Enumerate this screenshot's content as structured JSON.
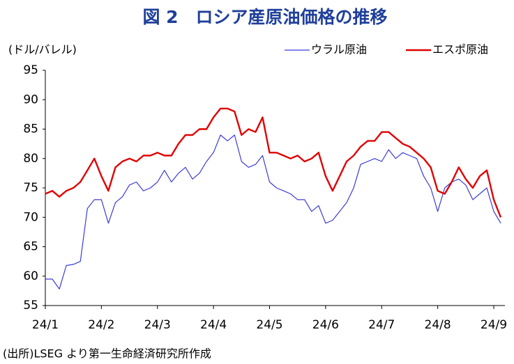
{
  "chart_data": {
    "type": "line",
    "title": "図 2　ロシア産原油価格の推移",
    "y_label": "(ドル/バレル)",
    "source": "(出所)LSEG より第一生命経済研究所作成",
    "categories": [
      "24/1",
      null,
      null,
      null,
      null,
      null,
      null,
      null,
      "24/2",
      null,
      null,
      null,
      null,
      null,
      null,
      null,
      "24/3",
      null,
      null,
      null,
      null,
      null,
      null,
      null,
      "24/4",
      null,
      null,
      null,
      null,
      null,
      null,
      null,
      "24/5",
      null,
      null,
      null,
      null,
      null,
      null,
      null,
      "24/6",
      null,
      null,
      null,
      null,
      null,
      null,
      null,
      "24/7",
      null,
      null,
      null,
      null,
      null,
      null,
      null,
      "24/8",
      null,
      null,
      null,
      null,
      null,
      null,
      null,
      "24/9",
      null
    ],
    "series": [
      {
        "name": "ウラル原油",
        "color": "#3b3bd6",
        "values": [
          59.5,
          59.5,
          57.8,
          61.8,
          62,
          62.5,
          71.5,
          73,
          73,
          69,
          72.5,
          73.5,
          75.5,
          76,
          74.5,
          75,
          76,
          78,
          76,
          77.5,
          78.5,
          76.5,
          77.5,
          79.5,
          81,
          84,
          83,
          84,
          79.5,
          78.5,
          79,
          80.5,
          76,
          75,
          74.5,
          74,
          73,
          73,
          71,
          72,
          69,
          69.5,
          71,
          72.5,
          75,
          79,
          79.5,
          80,
          79.5,
          81.5,
          80,
          81,
          80.5,
          80,
          77,
          75,
          71,
          75,
          76,
          76.5,
          75.5,
          73,
          74,
          75,
          71,
          69
        ]
      },
      {
        "name": "エスポ原油",
        "color": "#e00000",
        "values": [
          74,
          74.5,
          73.5,
          74.5,
          75,
          76,
          78,
          80,
          77,
          74.5,
          78.5,
          79.5,
          80,
          79.5,
          80.5,
          80.5,
          81,
          80.5,
          80.5,
          82.5,
          84,
          84,
          85,
          85,
          87,
          88.5,
          88.5,
          88,
          84,
          85,
          84.5,
          87,
          81,
          81,
          80.5,
          80,
          80.5,
          79.5,
          80,
          81,
          77,
          74.5,
          77,
          79.5,
          80.5,
          82,
          83,
          83,
          84.5,
          84.5,
          83.5,
          82.5,
          82,
          81,
          80,
          78.5,
          74.5,
          74,
          76,
          78.5,
          76.5,
          75,
          77,
          78,
          73,
          70
        ]
      }
    ],
    "ylim": [
      55,
      95
    ],
    "yticks": [
      55,
      60,
      65,
      70,
      75,
      80,
      85,
      90,
      95
    ],
    "grid": false,
    "legend": "top-right"
  }
}
